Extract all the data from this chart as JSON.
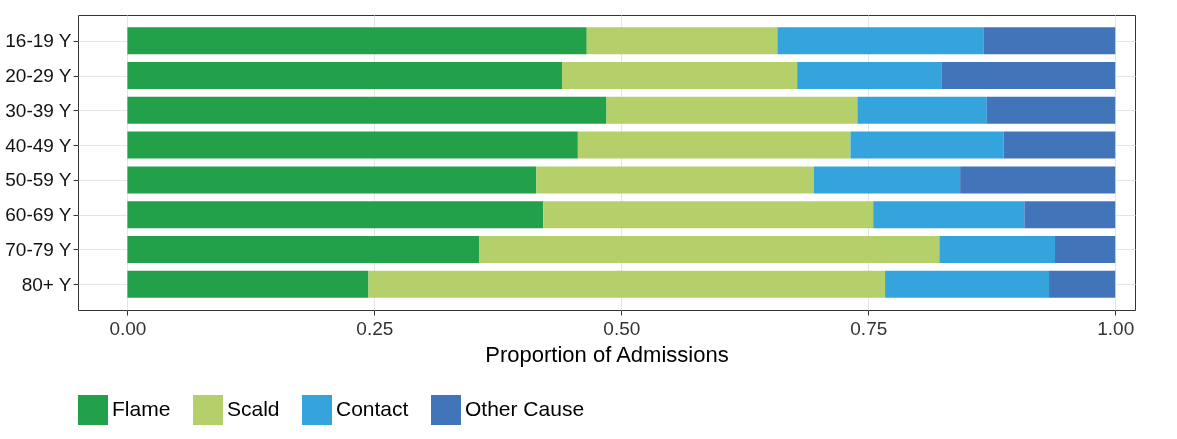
{
  "chart_data": {
    "type": "bar",
    "orientation": "horizontal",
    "stacked": true,
    "xlabel": "Proportion of Admissions",
    "categories": [
      "16-19 Y",
      "20-29 Y",
      "30-39 Y",
      "40-49 Y",
      "50-59 Y",
      "60-69 Y",
      "70-79 Y",
      "80+ Y"
    ],
    "series": [
      {
        "name": "Flame",
        "color": "#22a04a",
        "values": [
          0.465,
          0.44,
          0.485,
          0.456,
          0.414,
          0.421,
          0.356,
          0.244
        ]
      },
      {
        "name": "Scald",
        "color": "#b5cf6b",
        "values": [
          0.193,
          0.238,
          0.254,
          0.276,
          0.281,
          0.334,
          0.466,
          0.523
        ]
      },
      {
        "name": "Contact",
        "color": "#35a3dc",
        "values": [
          0.209,
          0.146,
          0.131,
          0.155,
          0.148,
          0.153,
          0.117,
          0.166
        ]
      },
      {
        "name": "Other Cause",
        "color": "#4274ba",
        "values": [
          0.133,
          0.176,
          0.13,
          0.113,
          0.157,
          0.092,
          0.061,
          0.067
        ]
      }
    ],
    "xlim": [
      -0.05,
      1.02
    ],
    "xticks": [
      {
        "value": 0,
        "label": "0.00"
      },
      {
        "value": 0.25,
        "label": "0.25"
      },
      {
        "value": 0.5,
        "label": "0.50"
      },
      {
        "value": 0.75,
        "label": "0.75"
      },
      {
        "value": 1,
        "label": "1.00"
      }
    ],
    "grid": true,
    "legend": "bottom"
  }
}
